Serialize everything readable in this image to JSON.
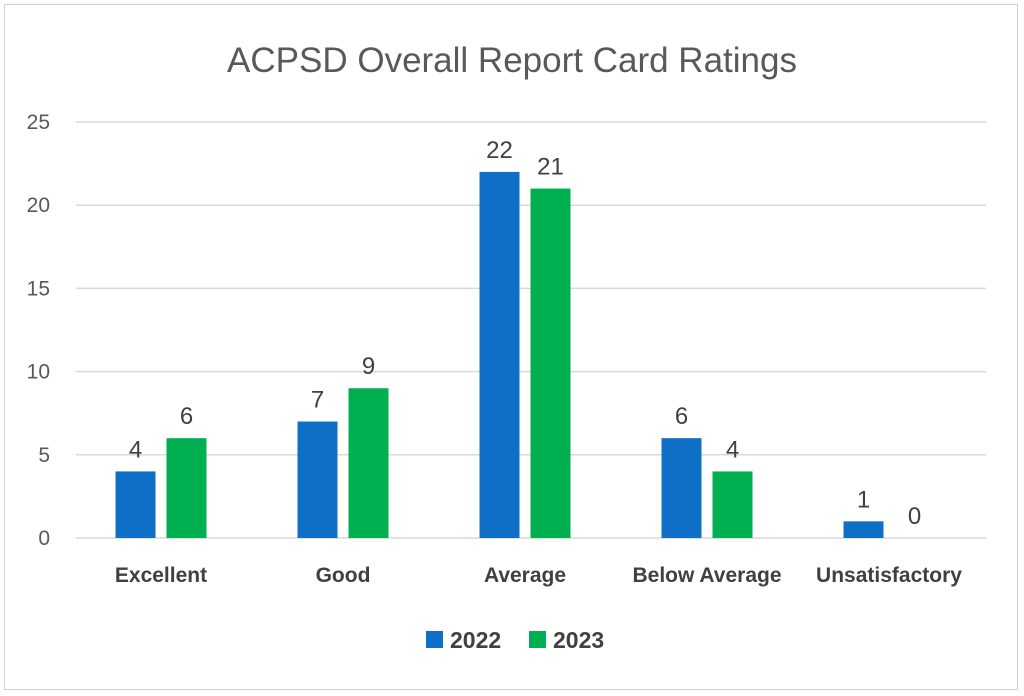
{
  "chart_data": {
    "type": "bar",
    "title": "ACPSD Overall Report Card Ratings",
    "categories": [
      "Excellent",
      "Good",
      "Average",
      "Below Average",
      "Unsatisfactory"
    ],
    "series": [
      {
        "name": "2022",
        "color": "#0f6fc6",
        "values": [
          4,
          7,
          22,
          6,
          1
        ]
      },
      {
        "name": "2023",
        "color": "#00b050",
        "values": [
          6,
          9,
          21,
          4,
          0
        ]
      }
    ],
    "yticks": [
      "0",
      "5",
      "10",
      "15",
      "20",
      "25"
    ],
    "ylim": [
      0,
      25
    ],
    "xlabel": "",
    "ylabel": "",
    "grid": true,
    "legend": "bottom"
  }
}
